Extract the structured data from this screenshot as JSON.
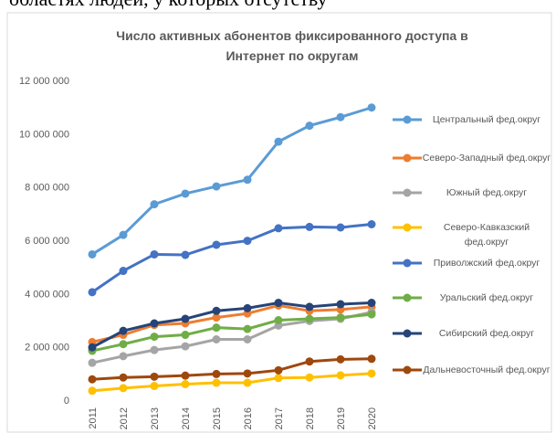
{
  "page_text": "областях людей, у которых отсутству",
  "chart_data": {
    "type": "line",
    "title": "Число активных абонентов фиксированного  доступа в\nИнтернет по округам",
    "categories": [
      "2011",
      "2012",
      "2013",
      "2014",
      "2015",
      "2016",
      "2017",
      "2018",
      "2019",
      "2020"
    ],
    "ylim": [
      0,
      12000000
    ],
    "yticks": [
      {
        "value": 0,
        "label": "0"
      },
      {
        "value": 2000000,
        "label": "2 000 000"
      },
      {
        "value": 4000000,
        "label": "4 000 000"
      },
      {
        "value": 6000000,
        "label": "6 000 000"
      },
      {
        "value": 8000000,
        "label": "8 000 000"
      },
      {
        "value": 10000000,
        "label": "10 000 000"
      },
      {
        "value": 12000000,
        "label": "12 000 000"
      }
    ],
    "grid": false,
    "legend": "right",
    "series": [
      {
        "name": "Центральный фед.округ",
        "color": "#5b9bd5",
        "values": [
          5470000,
          6200000,
          7350000,
          7750000,
          8020000,
          8270000,
          9700000,
          10300000,
          10620000,
          10980000
        ]
      },
      {
        "name": "Северо-Западный фед.округ",
        "color": "#ed7d31",
        "values": [
          2180000,
          2450000,
          2820000,
          2880000,
          3100000,
          3250000,
          3550000,
          3350000,
          3400000,
          3500000
        ]
      },
      {
        "name": "Южный фед.округ",
        "color": "#a5a5a5",
        "values": [
          1400000,
          1650000,
          1880000,
          2020000,
          2280000,
          2280000,
          2800000,
          2970000,
          3050000,
          3300000
        ]
      },
      {
        "name": "Северо-Кавказский фед.округ",
        "color": "#ffc000",
        "values": [
          350000,
          450000,
          530000,
          600000,
          650000,
          650000,
          830000,
          850000,
          930000,
          1000000
        ]
      },
      {
        "name": "Приволжский фед.округ",
        "color": "#4472c4",
        "values": [
          4050000,
          4850000,
          5470000,
          5450000,
          5830000,
          5980000,
          6450000,
          6500000,
          6480000,
          6600000
        ]
      },
      {
        "name": "Уральский фед.округ",
        "color": "#70ad47",
        "values": [
          1850000,
          2100000,
          2380000,
          2450000,
          2720000,
          2670000,
          3000000,
          3050000,
          3100000,
          3220000
        ]
      },
      {
        "name": "Сибирский фед.округ",
        "color": "#264478",
        "values": [
          1980000,
          2600000,
          2880000,
          3050000,
          3350000,
          3450000,
          3650000,
          3500000,
          3600000,
          3650000
        ]
      },
      {
        "name": "Дальневосточный фед.округ",
        "color": "#9e480e",
        "values": [
          780000,
          850000,
          880000,
          920000,
          980000,
          1000000,
          1120000,
          1450000,
          1530000,
          1550000
        ]
      }
    ]
  }
}
